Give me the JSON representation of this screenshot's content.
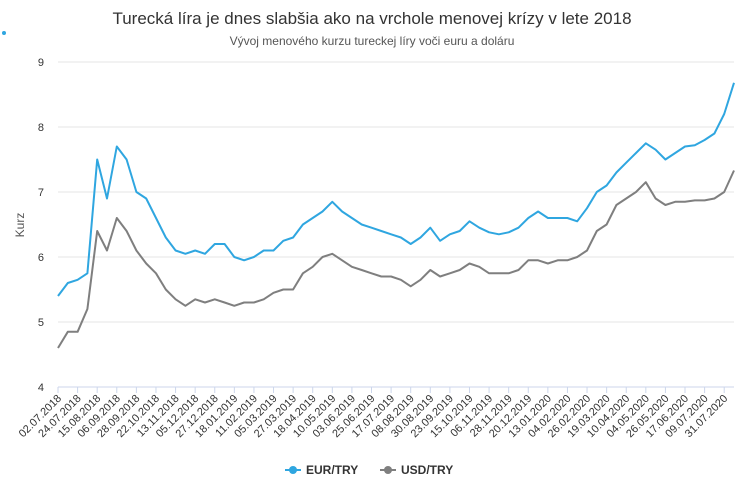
{
  "chart_data": {
    "type": "line",
    "title": "Turecká líra je dnes slabšia ako na vrchole menovej krízy v lete 2018",
    "subtitle": "Vývoj menového kurzu tureckej líry voči euru a doláru",
    "y_label": "Kurz",
    "categories": [
      "02.07.2018",
      null,
      "24.07.2018",
      null,
      "15.08.2018",
      null,
      "06.09.2018",
      null,
      "28.09.2018",
      null,
      "22.10.2018",
      null,
      "13.11.2018",
      null,
      "05.12.2018",
      null,
      "27.12.2018",
      null,
      "18.01.2019",
      null,
      "11.02.2019",
      null,
      "05.03.2019",
      null,
      "27.03.2019",
      null,
      "18.04.2019",
      null,
      "10.05.2019",
      null,
      "03.06.2019",
      null,
      "25.06.2019",
      null,
      "17.07.2019",
      null,
      "08.08.2019",
      null,
      "30.08.2019",
      null,
      "23.09.2019",
      null,
      "15.10.2019",
      null,
      "06.11.2019",
      null,
      "28.11.2019",
      null,
      "20.12.2019",
      null,
      "13.01.2020",
      null,
      "04.02.2020",
      null,
      "26.02.2020",
      null,
      "19.03.2020",
      null,
      "10.04.2020",
      null,
      "04.05.2020",
      null,
      "26.05.2020",
      null,
      "17.06.2020",
      null,
      "09.07.2020",
      null,
      "31.07.2020",
      null
    ],
    "series": [
      {
        "name": "EUR/TRY",
        "color": "#2fa6e0",
        "values": [
          5.4,
          5.6,
          5.65,
          5.75,
          7.5,
          6.9,
          7.7,
          7.5,
          7.0,
          6.9,
          6.6,
          6.3,
          6.1,
          6.05,
          6.1,
          6.05,
          6.2,
          6.2,
          6.0,
          5.95,
          6.0,
          6.1,
          6.1,
          6.25,
          6.3,
          6.5,
          6.6,
          6.7,
          6.85,
          6.7,
          6.6,
          6.5,
          6.45,
          6.4,
          6.35,
          6.3,
          6.2,
          6.3,
          6.45,
          6.25,
          6.35,
          6.4,
          6.55,
          6.45,
          6.38,
          6.35,
          6.38,
          6.45,
          6.6,
          6.7,
          6.6,
          6.6,
          6.6,
          6.55,
          6.75,
          7.0,
          7.1,
          7.3,
          7.45,
          7.6,
          7.75,
          7.65,
          7.5,
          7.6,
          7.7,
          7.72,
          7.8,
          7.9,
          8.2,
          8.68
        ]
      },
      {
        "name": "USD/TRY",
        "color": "#7f7f7f",
        "values": [
          4.6,
          4.85,
          4.85,
          5.2,
          6.4,
          6.1,
          6.6,
          6.4,
          6.1,
          5.9,
          5.75,
          5.5,
          5.35,
          5.25,
          5.35,
          5.3,
          5.35,
          5.3,
          5.25,
          5.3,
          5.3,
          5.35,
          5.45,
          5.5,
          5.5,
          5.75,
          5.85,
          6.0,
          6.05,
          5.95,
          5.85,
          5.8,
          5.75,
          5.7,
          5.7,
          5.65,
          5.55,
          5.65,
          5.8,
          5.7,
          5.75,
          5.8,
          5.9,
          5.85,
          5.75,
          5.75,
          5.75,
          5.8,
          5.95,
          5.95,
          5.9,
          5.95,
          5.95,
          6.0,
          6.1,
          6.4,
          6.5,
          6.8,
          6.9,
          7.0,
          7.15,
          6.9,
          6.8,
          6.85,
          6.85,
          6.87,
          6.87,
          6.9,
          7.0,
          7.33
        ]
      }
    ],
    "ylim": [
      4,
      9
    ],
    "yticks": [
      4,
      5,
      6,
      7,
      8,
      9
    ],
    "grid": true,
    "legend": "bottom"
  }
}
